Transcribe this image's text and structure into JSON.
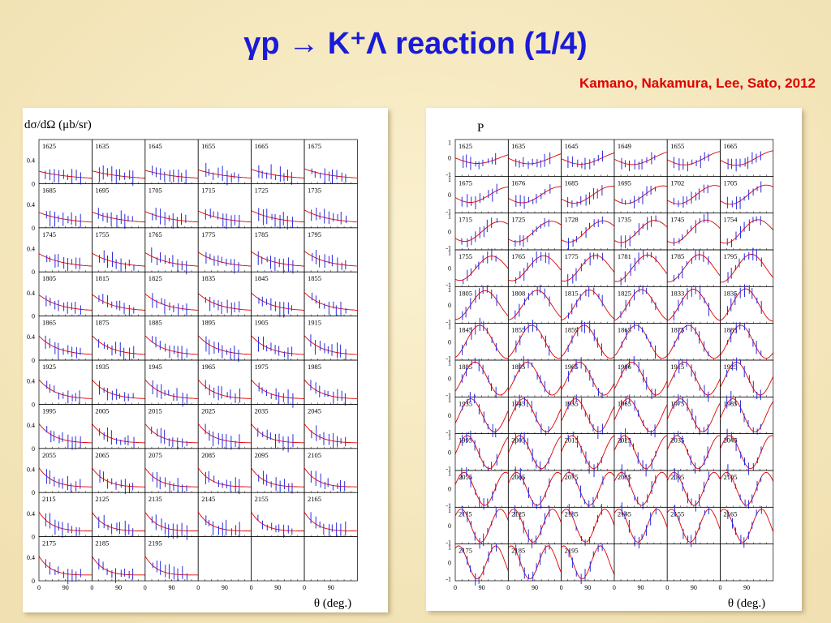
{
  "title": "γp → K⁺Λ reaction (1/4)",
  "authors": "Kamano, Nakamura, Lee, Sato, 2012",
  "left_panel": {
    "ylabel": "dσ/dΩ (μb/sr)",
    "xlabel": "θ (deg.)",
    "yticks": [
      "0.4",
      "0"
    ],
    "xticks": [
      "0",
      "90"
    ],
    "energies": [
      [
        "1625",
        "1635",
        "1645",
        "1655",
        "1665",
        "1675"
      ],
      [
        "1685",
        "1695",
        "1705",
        "1715",
        "1725",
        "1735"
      ],
      [
        "1745",
        "1755",
        "1765",
        "1775",
        "1785",
        "1795"
      ],
      [
        "1805",
        "1815",
        "1825",
        "1835",
        "1845",
        "1855"
      ],
      [
        "1865",
        "1875",
        "1885",
        "1895",
        "1905",
        "1915"
      ],
      [
        "1925",
        "1935",
        "1945",
        "1965",
        "1975",
        "1985"
      ],
      [
        "1995",
        "2005",
        "2015",
        "2025",
        "2035",
        "2045"
      ],
      [
        "2055",
        "2065",
        "2075",
        "2085",
        "2095",
        "2105"
      ],
      [
        "2115",
        "2125",
        "2135",
        "2145",
        "2155",
        "2165"
      ],
      [
        "2175",
        "2185",
        "2195"
      ]
    ]
  },
  "right_panel": {
    "ylabel": "P",
    "xlabel": "θ (deg.)",
    "yticks": [
      "1",
      "0",
      "-1"
    ],
    "xticks": [
      "0",
      "90"
    ],
    "energies": [
      [
        "1625",
        "1635",
        "1645",
        "1649",
        "1655",
        "1665"
      ],
      [
        "1675",
        "1676",
        "1685",
        "1695",
        "1702",
        "1705"
      ],
      [
        "1715",
        "1725",
        "1728",
        "1735",
        "1745",
        "1754"
      ],
      [
        "1755",
        "1765",
        "1775",
        "1781",
        "1785",
        "1795"
      ],
      [
        "1805",
        "1808",
        "1815",
        "1825",
        "1833",
        "1835"
      ],
      [
        "1845",
        "1855",
        "1859",
        "1865",
        "1875",
        "1883"
      ],
      [
        "1885",
        "1895",
        "1905",
        "1906",
        "1915",
        "1925"
      ],
      [
        "1935",
        "1945",
        "1955",
        "1965",
        "1975",
        "1985"
      ],
      [
        "1995",
        "2005",
        "2015",
        "2025",
        "2035",
        "2045"
      ],
      [
        "2055",
        "2065",
        "2075",
        "2085",
        "2095",
        "2105"
      ],
      [
        "2115",
        "2125",
        "2135",
        "2145",
        "2155",
        "2165"
      ],
      [
        "2175",
        "2185",
        "2195"
      ]
    ]
  }
}
